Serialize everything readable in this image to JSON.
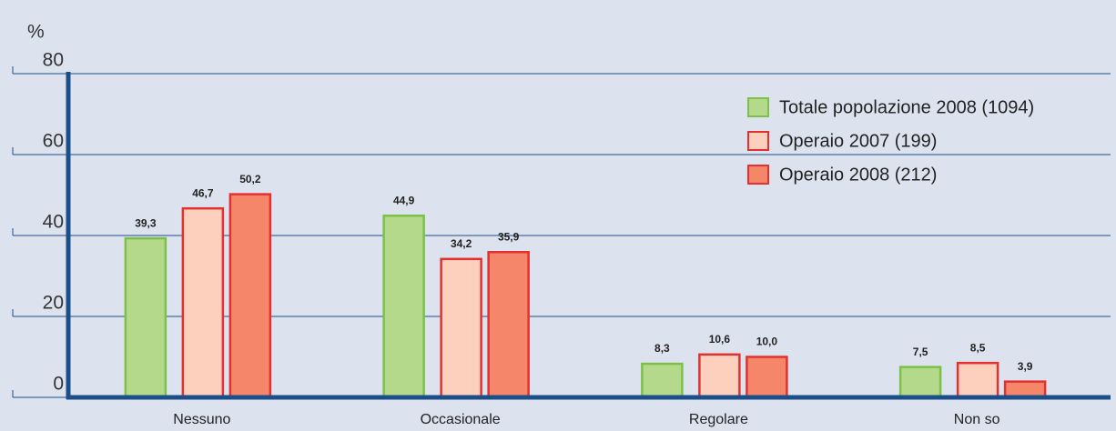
{
  "chart_data": {
    "type": "bar",
    "y_label": "%",
    "categories": [
      "Nessuno",
      "Occasionale",
      "Regolare",
      "Non so"
    ],
    "series": [
      {
        "name": "Totale popolazione 2008 (1094)",
        "color": "#b5d98b",
        "edge_color": "#7cc04a",
        "values": [
          39.3,
          44.9,
          8.3,
          7.5
        ],
        "value_labels": [
          "39,3",
          "44,9",
          "8,3",
          "7,5"
        ]
      },
      {
        "name": "Operaio 2007 (199)",
        "color": "#fdd0bd",
        "edge_color": "#e4312f",
        "values": [
          46.7,
          34.2,
          10.6,
          8.5
        ],
        "value_labels": [
          "46,7",
          "34,2",
          "10,6",
          "8,5"
        ]
      },
      {
        "name": "Operaio 2008 (212)",
        "color": "#f5866a",
        "edge_color": "#e4312f",
        "values": [
          50.2,
          35.9,
          10.0,
          3.9
        ],
        "value_labels": [
          "50,2",
          "35,9",
          "10,0",
          "3,9"
        ]
      }
    ],
    "ylim": [
      0,
      80
    ],
    "yticks": [
      0,
      20,
      40,
      60,
      80
    ],
    "grid": true,
    "legend": "upper right"
  }
}
